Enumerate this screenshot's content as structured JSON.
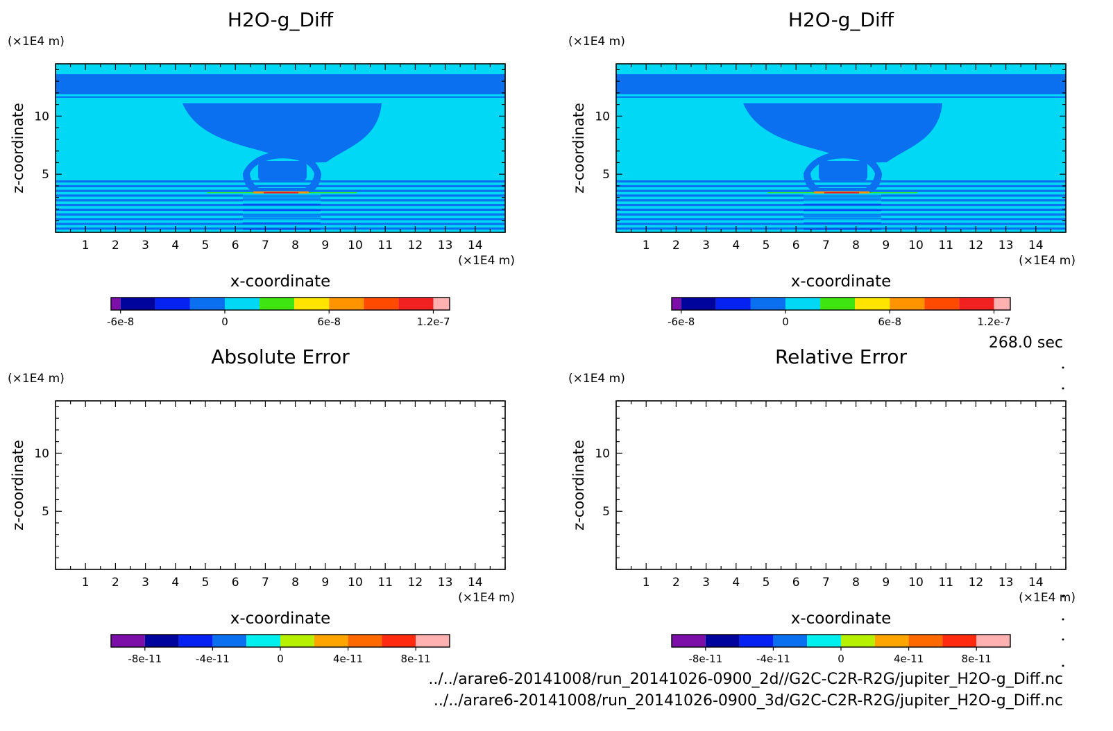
{
  "time_label": "268.0 sec",
  "file_paths": [
    "../../arare6-20141008/run_20141026-0900_2d//G2C-C2R-R2G/jupiter_H2O-g_Diff.nc",
    "../../arare6-20141008/run_20141026-0900_3d/G2C-C2R-R2G/jupiter_H2O-g_Diff.nc"
  ],
  "chart_data": [
    {
      "type": "heatmap",
      "title": "H2O-g_Diff",
      "xlabel": "x-coordinate",
      "ylabel": "z-coordinate",
      "x_unit": "(×1E4 m)",
      "y_unit": "(×1E4 m)",
      "xlim": [
        0,
        15
      ],
      "ylim": [
        0,
        14.5
      ],
      "xticks": [
        1,
        2,
        3,
        4,
        5,
        6,
        7,
        8,
        9,
        10,
        11,
        12,
        13,
        14
      ],
      "yticks": [
        5,
        10
      ],
      "colorbar": {
        "levels": [
          "-6e-8",
          "0",
          "6e-8",
          "1.2e-7"
        ],
        "colors": [
          "#7b0fa8",
          "#00049c",
          "#0522f2",
          "#0a70f0",
          "#00d8f6",
          "#3ee510",
          "#ffe400",
          "#ff9400",
          "#ff4a00",
          "#f22121",
          "#ffb0b0"
        ]
      }
    },
    {
      "type": "heatmap",
      "title": "H2O-g_Diff",
      "xlabel": "x-coordinate",
      "ylabel": "z-coordinate",
      "x_unit": "(×1E4 m)",
      "y_unit": "(×1E4 m)",
      "xlim": [
        0,
        15
      ],
      "ylim": [
        0,
        14.5
      ],
      "xticks": [
        1,
        2,
        3,
        4,
        5,
        6,
        7,
        8,
        9,
        10,
        11,
        12,
        13,
        14
      ],
      "yticks": [
        5,
        10
      ],
      "colorbar": {
        "levels": [
          "-6e-8",
          "0",
          "6e-8",
          "1.2e-7"
        ],
        "colors": [
          "#7b0fa8",
          "#00049c",
          "#0522f2",
          "#0a70f0",
          "#00d8f6",
          "#3ee510",
          "#ffe400",
          "#ff9400",
          "#ff4a00",
          "#f22121",
          "#ffb0b0"
        ]
      }
    },
    {
      "type": "heatmap",
      "title": "Absolute Error",
      "xlabel": "x-coordinate",
      "ylabel": "z-coordinate",
      "x_unit": "(×1E4 m)",
      "y_unit": "(×1E4 m)",
      "xlim": [
        0,
        15
      ],
      "ylim": [
        0,
        14.5
      ],
      "xticks": [
        1,
        2,
        3,
        4,
        5,
        6,
        7,
        8,
        9,
        10,
        11,
        12,
        13,
        14
      ],
      "yticks": [
        5,
        10
      ],
      "colorbar": {
        "levels": [
          "-8e-11",
          "-4e-11",
          "0",
          "4e-11",
          "8e-11"
        ],
        "colors": [
          "#7b0fa8",
          "#00049c",
          "#0522f2",
          "#0a70f0",
          "#00f0f0",
          "#b7f000",
          "#ffa500",
          "#ff6a00",
          "#ff2a10",
          "#ffb0b0"
        ]
      }
    },
    {
      "type": "heatmap",
      "title": "Relative Error",
      "xlabel": "x-coordinate",
      "ylabel": "z-coordinate",
      "x_unit": "(×1E4 m)",
      "y_unit": "(×1E4 m)",
      "xlim": [
        0,
        15
      ],
      "ylim": [
        0,
        14.5
      ],
      "xticks": [
        1,
        2,
        3,
        4,
        5,
        6,
        7,
        8,
        9,
        10,
        11,
        12,
        13,
        14
      ],
      "yticks": [
        5,
        10
      ],
      "colorbar": {
        "levels": [
          "-8e-11",
          "-4e-11",
          "0",
          "4e-11",
          "8e-11"
        ],
        "colors": [
          "#7b0fa8",
          "#00049c",
          "#0522f2",
          "#0a70f0",
          "#00f0f0",
          "#b7f000",
          "#ffa500",
          "#ff6a00",
          "#ff2a10",
          "#ffb0b0"
        ]
      }
    }
  ]
}
